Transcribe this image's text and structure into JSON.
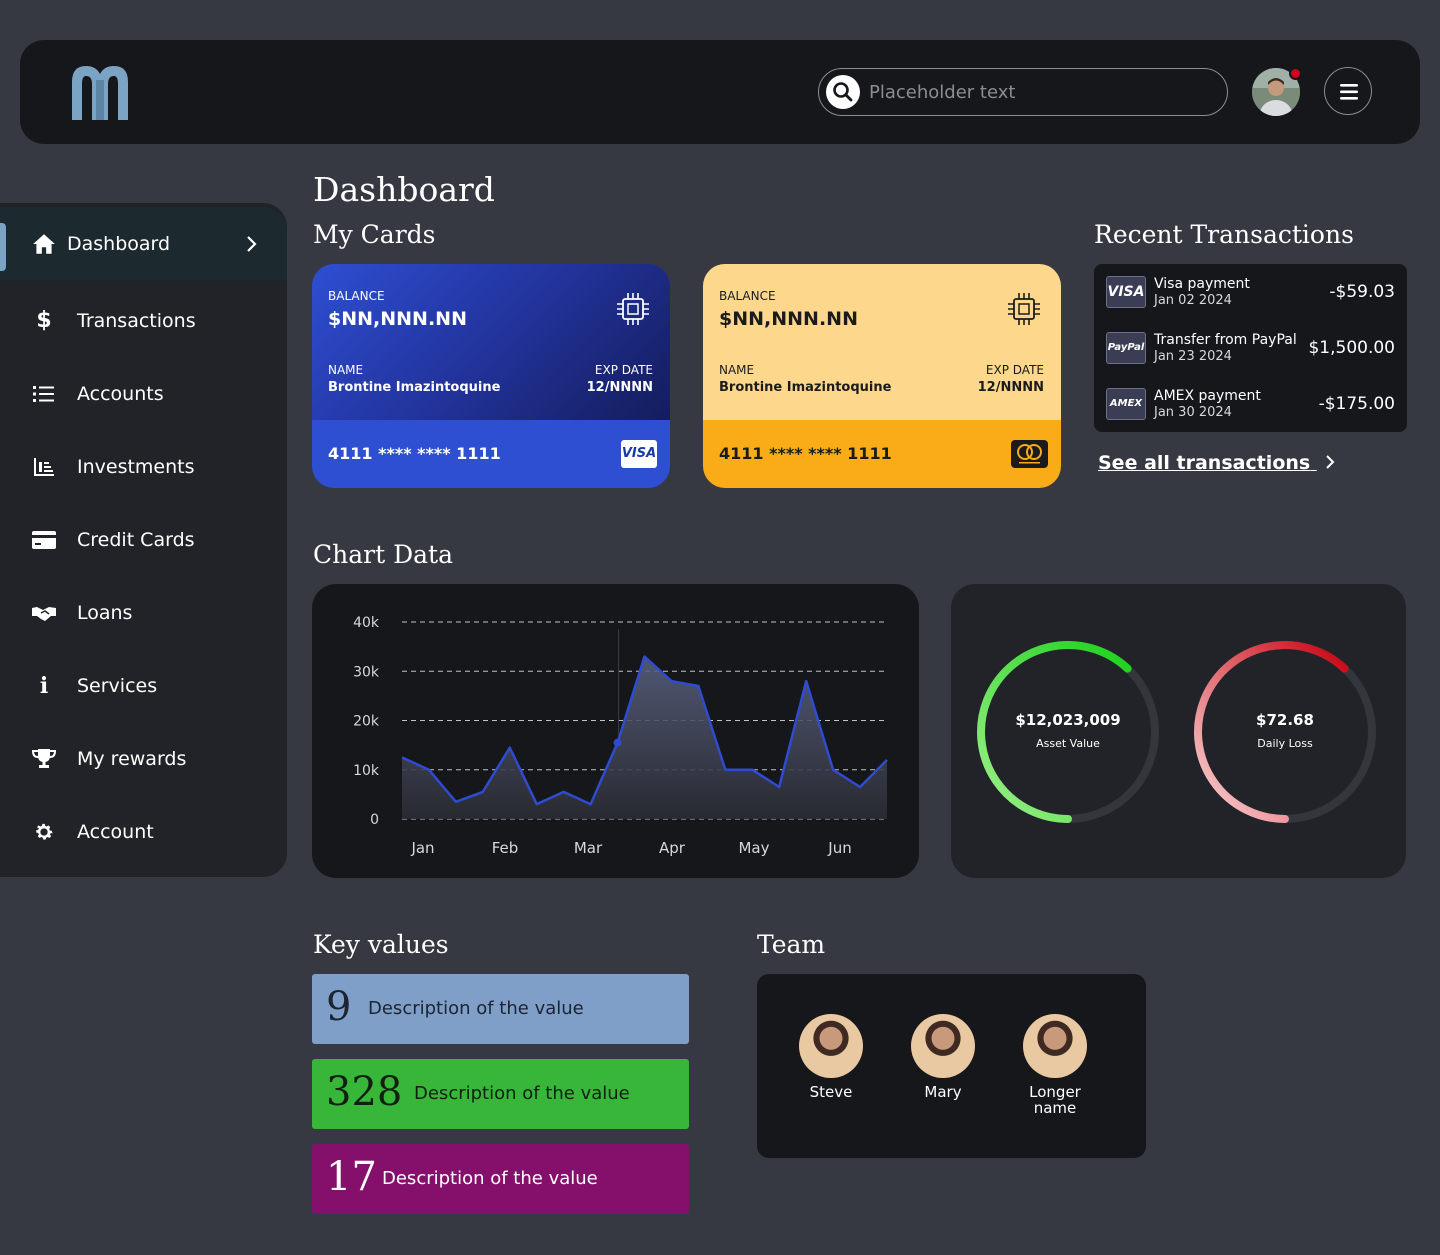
{
  "header": {
    "search_placeholder": "Placeholder text",
    "notification_color": "#d0021b"
  },
  "sidebar": {
    "items": [
      {
        "label": "Dashboard",
        "icon": "home-icon",
        "active": true
      },
      {
        "label": "Transactions",
        "icon": "dollar-icon"
      },
      {
        "label": "Accounts",
        "icon": "list-icon"
      },
      {
        "label": "Investments",
        "icon": "bar-chart-icon"
      },
      {
        "label": "Credit Cards",
        "icon": "credit-card-icon"
      },
      {
        "label": "Loans",
        "icon": "handshake-icon"
      },
      {
        "label": "Services",
        "icon": "info-icon"
      },
      {
        "label": "My rewards",
        "icon": "trophy-icon"
      },
      {
        "label": "Account",
        "icon": "gear-icon"
      }
    ]
  },
  "page": {
    "title": "Dashboard",
    "my_cards_title": "My Cards",
    "recent_tx_title": "Recent Transactions",
    "chart_title": "Chart Data",
    "key_values_title": "Key values",
    "team_title": "Team"
  },
  "cards": [
    {
      "balance_label": "BALANCE",
      "balance": "$NN,NNN.NN",
      "name_label": "NAME",
      "name": "Brontine Imazintoquine",
      "exp_label": "EXP DATE",
      "exp": "12/NNNN",
      "number": "4111 **** **** 1111",
      "brand": "VISA"
    },
    {
      "balance_label": "BALANCE",
      "balance": "$NN,NNN.NN",
      "name_label": "NAME",
      "name": "Brontine Imazintoquine",
      "exp_label": "EXP DATE",
      "exp": "12/NNNN",
      "number": "4111 **** **** 1111",
      "brand": "mastercard"
    }
  ],
  "transactions": [
    {
      "logo": "VISA",
      "name": "Visa payment",
      "date": "Jan 02 2024",
      "amount": "-$59.03"
    },
    {
      "logo": "PayPal",
      "name": "Transfer from PayPal",
      "date": "Jan 23 2024",
      "amount": "$1,500.00"
    },
    {
      "logo": "AMEX",
      "name": "AMEX payment",
      "date": "Jan 30 2024",
      "amount": "-$175.00"
    }
  ],
  "see_all": "See all transactions",
  "chart_data": {
    "type": "area",
    "title": "",
    "xlabel": "",
    "ylabel": "",
    "x_ticks": [
      "Jan",
      "Feb",
      "Mar",
      "Apr",
      "May",
      "Jun"
    ],
    "y_ticks": [
      "40k",
      "30k",
      "20k",
      "10k",
      "0"
    ],
    "ylim": [
      0,
      40000
    ],
    "grid": true,
    "line_color": "#2f4bd0",
    "values": [
      12500,
      10000,
      3500,
      5500,
      14500,
      3000,
      5500,
      3000,
      15500,
      33000,
      28000,
      27000,
      10000,
      10000,
      6500,
      28000,
      10000,
      6500,
      12000
    ]
  },
  "gauges": [
    {
      "value": "$12,023,009",
      "label": "Asset Value",
      "fraction": 0.62,
      "color_start": "#9ef08a",
      "color_end": "#1bd11b"
    },
    {
      "value": "$72.68",
      "label": "Daily Loss",
      "fraction": 0.62,
      "color_start": "#fcd8d8",
      "color_end": "#c8000f"
    }
  ],
  "key_values": [
    {
      "number": "9",
      "desc": "Description of the value",
      "bg": "#7f9fc8",
      "fg": "#1b2433"
    },
    {
      "number": "328",
      "desc": "Description of the value",
      "bg": "#37b63a",
      "fg": "#0f200f"
    },
    {
      "number": "17",
      "desc": "Description of the value",
      "bg": "#85106c",
      "fg": "#ffffff"
    }
  ],
  "team": [
    {
      "name": "Steve"
    },
    {
      "name": "Mary"
    },
    {
      "name": "Longer name"
    }
  ]
}
